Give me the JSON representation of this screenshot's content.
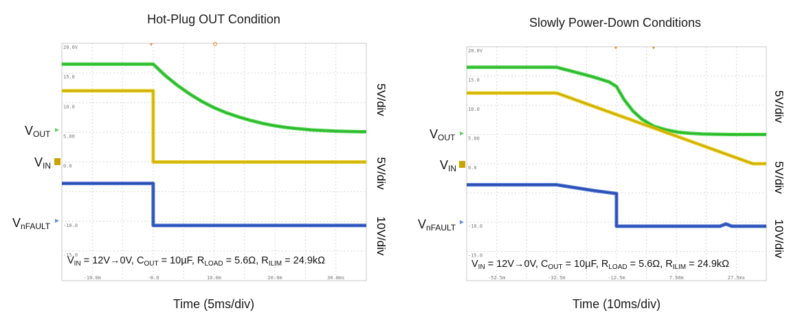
{
  "chart_data": [
    {
      "type": "line",
      "title": "Hot-Plug OUT Condition",
      "xlabel": "Time (5ms/div)",
      "x_unit": "ms",
      "xlim": [
        -15,
        35
      ],
      "ylim": [
        -20,
        20
      ],
      "x_tick_labels": [
        "-10.0m",
        "-0.0",
        "10.0m",
        "20.0m",
        "30.0ms"
      ],
      "x_tick_values": [
        -10,
        0,
        10,
        20,
        30
      ],
      "y_tick_labels": [
        "20.0V",
        "15.0",
        "10.0",
        "5.00",
        "0.0",
        "-10.0",
        "-15.0"
      ],
      "y_tick_values": [
        20,
        15,
        10,
        5,
        0,
        -10,
        -15
      ],
      "channel_labels": [
        {
          "prefix": "V",
          "sub": "OUT"
        },
        {
          "prefix": "V",
          "sub": "IN"
        },
        {
          "prefix": "V",
          "sub": "nFAULT"
        }
      ],
      "scales": [
        {
          "text": "5V/div",
          "color": "#2eb82e"
        },
        {
          "text": "5V/div",
          "color": "#e6c300"
        },
        {
          "text": "10V/div",
          "color": "#2a4fb0"
        }
      ],
      "condition": {
        "vin": "= 12V→0V, ",
        "cout": "= 10µF, ",
        "rload": "= 5.6Ω, ",
        "rilim": "= 24.9kΩ"
      },
      "series": [
        {
          "name": "VOUT",
          "color": "#2ecc2e",
          "width": 5,
          "x": [
            -15,
            0,
            2,
            4,
            6,
            8,
            10,
            12,
            14,
            16,
            18,
            20,
            22,
            24,
            26,
            28,
            30,
            32,
            34,
            35
          ],
          "y": [
            16.5,
            16.5,
            14.55,
            12.9,
            11.45,
            10.2,
            9.15,
            8.3,
            7.6,
            7.0,
            6.5,
            6.1,
            5.8,
            5.6,
            5.4,
            5.3,
            5.2,
            5.15,
            5.1,
            5.1
          ]
        },
        {
          "name": "VIN",
          "color": "#e6c300",
          "width": 5,
          "x": [
            -15,
            0,
            0,
            35
          ],
          "y": [
            12,
            12,
            0,
            0
          ]
        },
        {
          "name": "VnFAULT",
          "color": "#2a55c8",
          "width": 5,
          "x": [
            -15,
            0,
            0,
            35
          ],
          "y": [
            -3.6,
            -3.6,
            -10.7,
            -10.7
          ]
        }
      ]
    },
    {
      "type": "line",
      "title": "Slowly Power-Down Conditions",
      "xlabel": "Time (10ms/div)",
      "x_unit": "ms",
      "xlim": [
        -62.5,
        37.5
      ],
      "ylim": [
        -20,
        20
      ],
      "x_tick_labels": [
        "-52.5m",
        "-32.5m",
        "-12.5m",
        "7.50m",
        "27.5ms"
      ],
      "x_tick_values": [
        -52.5,
        -32.5,
        -12.5,
        7.5,
        27.5
      ],
      "y_tick_labels": [
        "20.0V",
        "15.0",
        "10.0",
        "5.00",
        "0.0",
        "-10.0",
        "-15.0"
      ],
      "y_tick_values": [
        20,
        15,
        10,
        5,
        0,
        -10,
        -15
      ],
      "channel_labels": [
        {
          "prefix": "V",
          "sub": "OUT"
        },
        {
          "prefix": "V",
          "sub": "IN"
        },
        {
          "prefix": "V",
          "sub": "nFAULT"
        }
      ],
      "scales": [
        {
          "text": "5V/div",
          "color": "#2eb82e"
        },
        {
          "text": "5V/div",
          "color": "#e6c300"
        },
        {
          "text": "10V/div",
          "color": "#2a4fb0"
        }
      ],
      "condition": {
        "vin": "= 12V→0V, ",
        "cout": "= 10µF, ",
        "rload": "= 5.6Ω, ",
        "rilim": "= 24.9kΩ"
      },
      "series": [
        {
          "name": "VOUT",
          "color": "#2ecc2e",
          "width": 5,
          "x": [
            -62.5,
            -32.5,
            -25,
            -20,
            -15,
            -12.5,
            -10,
            -7,
            -4,
            0,
            4,
            8,
            12,
            16,
            20,
            25,
            30,
            37.5
          ],
          "y": [
            16.5,
            16.5,
            15.5,
            14.8,
            14.0,
            13.2,
            11.0,
            9.0,
            7.6,
            6.4,
            5.8,
            5.4,
            5.2,
            5.1,
            5.05,
            5.0,
            5.0,
            5.0
          ]
        },
        {
          "name": "VIN",
          "color": "#e6c300",
          "width": 5,
          "x": [
            -62.5,
            -32.5,
            33,
            37.5
          ],
          "y": [
            12.1,
            12.1,
            0,
            0
          ]
        },
        {
          "name": "VnFAULT",
          "color": "#2a55c8",
          "width": 5,
          "x": [
            -62.5,
            -32.5,
            -20,
            -12.5,
            -12.5,
            20,
            22,
            24,
            26,
            37.5
          ],
          "y": [
            -3.6,
            -3.6,
            -4.6,
            -5.1,
            -10.7,
            -10.7,
            -10.7,
            -10.3,
            -10.7,
            -10.7
          ]
        }
      ]
    }
  ]
}
